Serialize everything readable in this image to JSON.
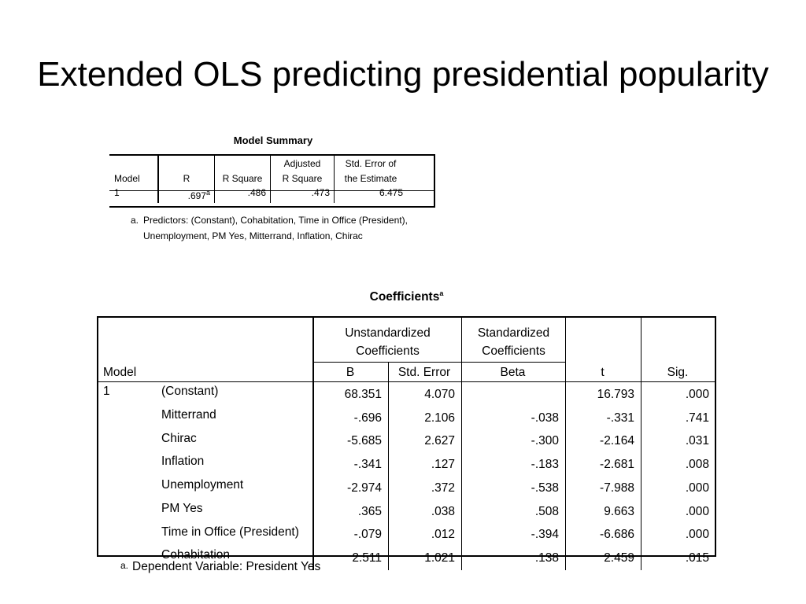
{
  "title": "Extended OLS predicting presidential popularity",
  "model_summary": {
    "caption": "Model Summary",
    "headers": {
      "model": "Model",
      "r": "R",
      "r_square": "R Square",
      "adj_r_square_1": "Adjusted",
      "adj_r_square_2": "R Square",
      "std_error_1": "Std. Error of",
      "std_error_2": "the Estimate"
    },
    "row": {
      "model": "1",
      "r": ".697",
      "r_footnote": "a",
      "r_square": ".486",
      "adj_r_square": ".473",
      "std_error": "6.475"
    },
    "note_mark": "a.",
    "note": "Predictors: (Constant), Cohabitation, Time in Office (President), Unemployment, PM Yes, Mitterrand, Inflation, Chirac"
  },
  "coefficients": {
    "caption": "Coefficients",
    "caption_footnote": "a",
    "headers": {
      "model": "Model",
      "unstd_1": "Unstandardized",
      "unstd_2": "Coefficients",
      "std_1": "Standardized",
      "std_2": "Coefficients",
      "b": "B",
      "std_error": "Std. Error",
      "beta": "Beta",
      "t": "t",
      "sig": "Sig."
    },
    "model_number": "1",
    "rows": [
      {
        "label": "(Constant)",
        "b": "68.351",
        "se": "4.070",
        "beta": "",
        "t": "16.793",
        "sig": ".000"
      },
      {
        "label": "Mitterrand",
        "b": "-.696",
        "se": "2.106",
        "beta": "-.038",
        "t": "-.331",
        "sig": ".741"
      },
      {
        "label": "Chirac",
        "b": "-5.685",
        "se": "2.627",
        "beta": "-.300",
        "t": "-2.164",
        "sig": ".031"
      },
      {
        "label": "Inflation",
        "b": "-.341",
        "se": ".127",
        "beta": "-.183",
        "t": "-2.681",
        "sig": ".008"
      },
      {
        "label": "Unemployment",
        "b": "-2.974",
        "se": ".372",
        "beta": "-.538",
        "t": "-7.988",
        "sig": ".000"
      },
      {
        "label": "PM Yes",
        "b": ".365",
        "se": ".038",
        "beta": ".508",
        "t": "9.663",
        "sig": ".000"
      },
      {
        "label": "Time in Office (President)",
        "b": "-.079",
        "se": ".012",
        "beta": "-.394",
        "t": "-6.686",
        "sig": ".000"
      },
      {
        "label": "Cohabitation",
        "b": "2.511",
        "se": "1.021",
        "beta": ".138",
        "t": "2.459",
        "sig": ".015"
      }
    ],
    "note_mark": "a.",
    "note": "Dependent Variable: President Yes"
  }
}
